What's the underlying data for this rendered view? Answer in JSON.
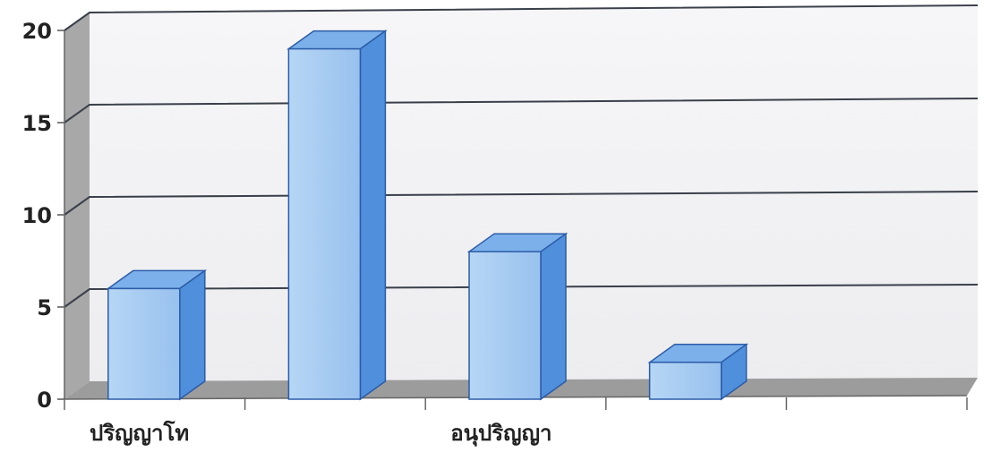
{
  "chart_data": {
    "type": "bar",
    "categories": [
      "ปริญญาโท",
      "",
      "อนุปริญญา",
      "",
      ""
    ],
    "values": [
      6,
      19,
      8,
      2,
      0
    ],
    "ylim": [
      0,
      20
    ],
    "yticks": [
      0,
      5,
      10,
      15,
      20
    ],
    "grid": true,
    "legend": "none",
    "colors": {
      "bar_front": "#a9cef2",
      "bar_top": "#7cb0ea",
      "bar_side": "#4f8fdc",
      "bar_stroke": "#2c5ca8",
      "grid": "#3a3f4a",
      "back_wall": "#f3f3f5",
      "side_wall": "#a9a9a9",
      "floor": "#9e9e9e"
    }
  }
}
